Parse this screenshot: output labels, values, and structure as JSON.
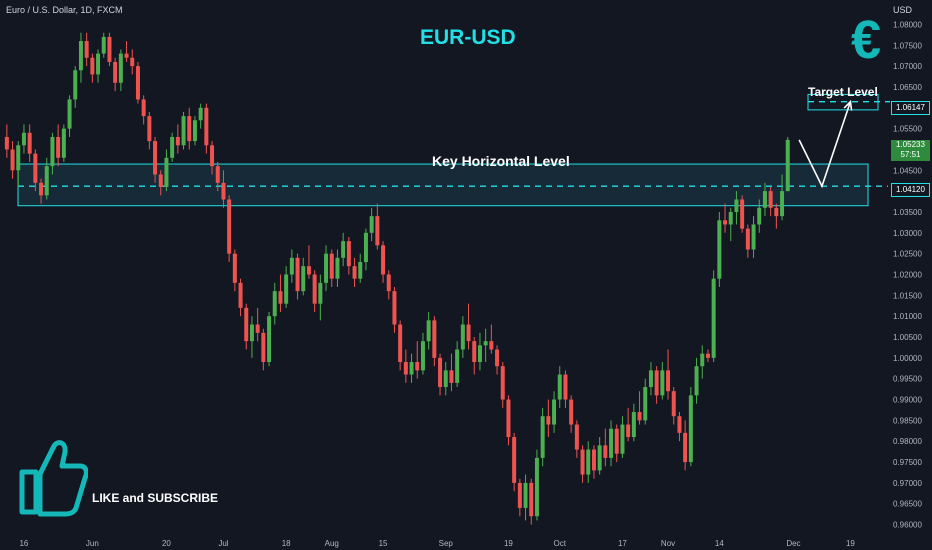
{
  "header": {
    "symbol": "Euro / U.S. Dollar, 1D, FXCM",
    "currency": "USD",
    "title": "EUR-USD",
    "euro_icon": "€"
  },
  "annotations": {
    "key_level_label": "Key Horizontal Level",
    "target_label": "Target Level",
    "cta_text": "LIKE and SUBSCRIBE",
    "cta_icon": "thumbs-up-icon"
  },
  "price_tags": {
    "target": "1.06147",
    "key_level": "1.04120",
    "last_price": "1.05233",
    "countdown": "57:51"
  },
  "colors": {
    "background": "#131722",
    "bull": "#4caf50",
    "bear": "#ef5350",
    "accent": "#22e0e6",
    "zone_fill": "#1b3a4b"
  },
  "chart_data": {
    "type": "candlestick",
    "title": "EUR-USD",
    "ylim": [
      0.9575,
      1.0825
    ],
    "y_ticks": [
      "1.08000",
      "1.07500",
      "1.07000",
      "1.06500",
      "1.06000",
      "1.05500",
      "1.05000",
      "1.04500",
      "1.04000",
      "1.03500",
      "1.03000",
      "1.02500",
      "1.02000",
      "1.01500",
      "1.01000",
      "1.00500",
      "1.00000",
      "0.99500",
      "0.99000",
      "0.98500",
      "0.98000",
      "0.97500",
      "0.97000",
      "0.96500",
      "0.96000"
    ],
    "x_ticks": [
      {
        "label": "16",
        "i": 3
      },
      {
        "label": "Jun",
        "i": 15
      },
      {
        "label": "20",
        "i": 28
      },
      {
        "label": "Jul",
        "i": 38
      },
      {
        "label": "18",
        "i": 49
      },
      {
        "label": "Aug",
        "i": 57
      },
      {
        "label": "15",
        "i": 66
      },
      {
        "label": "Sep",
        "i": 77
      },
      {
        "label": "19",
        "i": 88
      },
      {
        "label": "Oct",
        "i": 97
      },
      {
        "label": "17",
        "i": 108
      },
      {
        "label": "Nov",
        "i": 116
      },
      {
        "label": "14",
        "i": 125
      },
      {
        "label": "Dec",
        "i": 138
      },
      {
        "label": "19",
        "i": 148
      }
    ],
    "key_zone": {
      "low": 1.0365,
      "high": 1.0465,
      "level": 1.0412
    },
    "target_zone": {
      "low": 1.0595,
      "high": 1.0632,
      "level": 1.06147
    },
    "projection": [
      [
        139,
        1.0523
      ],
      [
        143,
        1.0412
      ],
      [
        148,
        1.06147
      ]
    ],
    "candles": [
      [
        1.053,
        1.056,
        1.048,
        1.05
      ],
      [
        1.05,
        1.052,
        1.043,
        1.045
      ],
      [
        1.045,
        1.052,
        1.041,
        1.051
      ],
      [
        1.051,
        1.056,
        1.049,
        1.054
      ],
      [
        1.054,
        1.056,
        1.047,
        1.049
      ],
      [
        1.049,
        1.05,
        1.04,
        1.042
      ],
      [
        1.042,
        1.043,
        1.037,
        1.039
      ],
      [
        1.039,
        1.048,
        1.038,
        1.046
      ],
      [
        1.046,
        1.054,
        1.044,
        1.053
      ],
      [
        1.053,
        1.056,
        1.046,
        1.048
      ],
      [
        1.048,
        1.056,
        1.047,
        1.055
      ],
      [
        1.055,
        1.063,
        1.053,
        1.062
      ],
      [
        1.062,
        1.07,
        1.06,
        1.069
      ],
      [
        1.069,
        1.078,
        1.066,
        1.076
      ],
      [
        1.076,
        1.078,
        1.07,
        1.072
      ],
      [
        1.072,
        1.073,
        1.066,
        1.068
      ],
      [
        1.068,
        1.074,
        1.066,
        1.073
      ],
      [
        1.073,
        1.078,
        1.072,
        1.077
      ],
      [
        1.077,
        1.078,
        1.07,
        1.071
      ],
      [
        1.071,
        1.072,
        1.064,
        1.066
      ],
      [
        1.066,
        1.074,
        1.064,
        1.073
      ],
      [
        1.073,
        1.076,
        1.071,
        1.072
      ],
      [
        1.072,
        1.074,
        1.068,
        1.07
      ],
      [
        1.07,
        1.071,
        1.061,
        1.062
      ],
      [
        1.062,
        1.063,
        1.056,
        1.058
      ],
      [
        1.058,
        1.059,
        1.05,
        1.052
      ],
      [
        1.052,
        1.053,
        1.042,
        1.044
      ],
      [
        1.044,
        1.045,
        1.039,
        1.041
      ],
      [
        1.041,
        1.05,
        1.04,
        1.048
      ],
      [
        1.048,
        1.054,
        1.047,
        1.053
      ],
      [
        1.053,
        1.056,
        1.049,
        1.051
      ],
      [
        1.051,
        1.059,
        1.05,
        1.058
      ],
      [
        1.058,
        1.06,
        1.05,
        1.052
      ],
      [
        1.052,
        1.058,
        1.051,
        1.057
      ],
      [
        1.057,
        1.061,
        1.055,
        1.06
      ],
      [
        1.06,
        1.061,
        1.049,
        1.051
      ],
      [
        1.051,
        1.052,
        1.044,
        1.046
      ],
      [
        1.046,
        1.047,
        1.04,
        1.042
      ],
      [
        1.042,
        1.045,
        1.036,
        1.038
      ],
      [
        1.038,
        1.039,
        1.023,
        1.025
      ],
      [
        1.025,
        1.026,
        1.016,
        1.018
      ],
      [
        1.018,
        1.019,
        1.01,
        1.012
      ],
      [
        1.012,
        1.013,
        1.002,
        1.004
      ],
      [
        1.004,
        1.01,
        1.0,
        1.008
      ],
      [
        1.008,
        1.012,
        1.004,
        1.006
      ],
      [
        1.006,
        1.007,
        0.997,
        0.999
      ],
      [
        0.999,
        1.011,
        0.998,
        1.01
      ],
      [
        1.01,
        1.018,
        1.008,
        1.016
      ],
      [
        1.016,
        1.02,
        1.011,
        1.013
      ],
      [
        1.013,
        1.022,
        1.012,
        1.02
      ],
      [
        1.02,
        1.026,
        1.018,
        1.024
      ],
      [
        1.024,
        1.025,
        1.014,
        1.016
      ],
      [
        1.016,
        1.024,
        1.015,
        1.022
      ],
      [
        1.022,
        1.027,
        1.019,
        1.02
      ],
      [
        1.02,
        1.021,
        1.011,
        1.013
      ],
      [
        1.013,
        1.02,
        1.009,
        1.018
      ],
      [
        1.018,
        1.027,
        1.016,
        1.025
      ],
      [
        1.025,
        1.026,
        1.017,
        1.019
      ],
      [
        1.019,
        1.026,
        1.017,
        1.024
      ],
      [
        1.024,
        1.03,
        1.022,
        1.028
      ],
      [
        1.028,
        1.029,
        1.02,
        1.022
      ],
      [
        1.022,
        1.024,
        1.017,
        1.019
      ],
      [
        1.019,
        1.025,
        1.018,
        1.023
      ],
      [
        1.023,
        1.031,
        1.021,
        1.03
      ],
      [
        1.03,
        1.036,
        1.028,
        1.034
      ],
      [
        1.034,
        1.037,
        1.026,
        1.027
      ],
      [
        1.027,
        1.028,
        1.018,
        1.02
      ],
      [
        1.02,
        1.021,
        1.014,
        1.016
      ],
      [
        1.016,
        1.017,
        1.006,
        1.008
      ],
      [
        1.008,
        1.009,
        0.997,
        0.999
      ],
      [
        0.999,
        1.002,
        0.994,
        0.996
      ],
      [
        0.996,
        1.001,
        0.994,
        0.999
      ],
      [
        0.999,
        1.004,
        0.995,
        0.997
      ],
      [
        0.997,
        1.006,
        0.996,
        1.004
      ],
      [
        1.004,
        1.011,
        1.002,
        1.009
      ],
      [
        1.009,
        1.01,
        0.998,
        1.0
      ],
      [
        1.0,
        1.001,
        0.991,
        0.993
      ],
      [
        0.993,
        0.999,
        0.991,
        0.997
      ],
      [
        0.997,
        1.001,
        0.992,
        0.994
      ],
      [
        0.994,
        1.004,
        0.993,
        1.002
      ],
      [
        1.002,
        1.01,
        1.0,
        1.008
      ],
      [
        1.008,
        1.013,
        1.002,
        1.004
      ],
      [
        1.004,
        1.005,
        0.996,
        0.999
      ],
      [
        0.999,
        1.006,
        0.997,
        1.003
      ],
      [
        1.003,
        1.007,
        0.999,
        1.004
      ],
      [
        1.004,
        1.008,
        1.001,
        1.002
      ],
      [
        1.002,
        1.003,
        0.996,
        0.998
      ],
      [
        0.998,
        0.999,
        0.988,
        0.99
      ],
      [
        0.99,
        0.991,
        0.979,
        0.981
      ],
      [
        0.981,
        0.982,
        0.968,
        0.97
      ],
      [
        0.97,
        0.971,
        0.962,
        0.964
      ],
      [
        0.964,
        0.972,
        0.961,
        0.97
      ],
      [
        0.97,
        0.971,
        0.96,
        0.962
      ],
      [
        0.962,
        0.978,
        0.961,
        0.976
      ],
      [
        0.976,
        0.988,
        0.974,
        0.986
      ],
      [
        0.986,
        0.99,
        0.981,
        0.984
      ],
      [
        0.984,
        0.992,
        0.982,
        0.99
      ],
      [
        0.99,
        0.998,
        0.988,
        0.996
      ],
      [
        0.996,
        0.997,
        0.988,
        0.99
      ],
      [
        0.99,
        0.991,
        0.982,
        0.984
      ],
      [
        0.984,
        0.985,
        0.976,
        0.978
      ],
      [
        0.978,
        0.979,
        0.97,
        0.972
      ],
      [
        0.972,
        0.98,
        0.97,
        0.978
      ],
      [
        0.978,
        0.979,
        0.971,
        0.973
      ],
      [
        0.973,
        0.981,
        0.972,
        0.979
      ],
      [
        0.979,
        0.983,
        0.974,
        0.976
      ],
      [
        0.976,
        0.985,
        0.974,
        0.983
      ],
      [
        0.983,
        0.984,
        0.975,
        0.977
      ],
      [
        0.977,
        0.986,
        0.976,
        0.984
      ],
      [
        0.984,
        0.988,
        0.98,
        0.981
      ],
      [
        0.981,
        0.989,
        0.98,
        0.987
      ],
      [
        0.987,
        0.992,
        0.984,
        0.985
      ],
      [
        0.985,
        0.995,
        0.984,
        0.993
      ],
      [
        0.993,
        0.999,
        0.991,
        0.997
      ],
      [
        0.997,
        0.998,
        0.989,
        0.991
      ],
      [
        0.991,
        0.999,
        0.99,
        0.997
      ],
      [
        0.997,
        1.002,
        0.99,
        0.992
      ],
      [
        0.992,
        0.993,
        0.984,
        0.986
      ],
      [
        0.986,
        0.987,
        0.98,
        0.982
      ],
      [
        0.982,
        0.985,
        0.973,
        0.975
      ],
      [
        0.975,
        0.993,
        0.974,
        0.991
      ],
      [
        0.991,
        1.0,
        0.989,
        0.998
      ],
      [
        0.998,
        1.003,
        0.995,
        1.001
      ],
      [
        1.001,
        1.002,
        0.999,
        1.0
      ],
      [
        1.0,
        1.021,
        0.999,
        1.019
      ],
      [
        1.019,
        1.035,
        1.017,
        1.033
      ],
      [
        1.033,
        1.037,
        1.03,
        1.032
      ],
      [
        1.032,
        1.036,
        1.028,
        1.035
      ],
      [
        1.035,
        1.04,
        1.032,
        1.038
      ],
      [
        1.038,
        1.039,
        1.03,
        1.031
      ],
      [
        1.031,
        1.032,
        1.024,
        1.026
      ],
      [
        1.026,
        1.034,
        1.024,
        1.032
      ],
      [
        1.032,
        1.038,
        1.03,
        1.036
      ],
      [
        1.036,
        1.042,
        1.034,
        1.04
      ],
      [
        1.04,
        1.041,
        1.034,
        1.036
      ],
      [
        1.036,
        1.037,
        1.031,
        1.034
      ],
      [
        1.034,
        1.044,
        1.033,
        1.04
      ],
      [
        1.04,
        1.053,
        1.04,
        1.0523
      ]
    ]
  }
}
